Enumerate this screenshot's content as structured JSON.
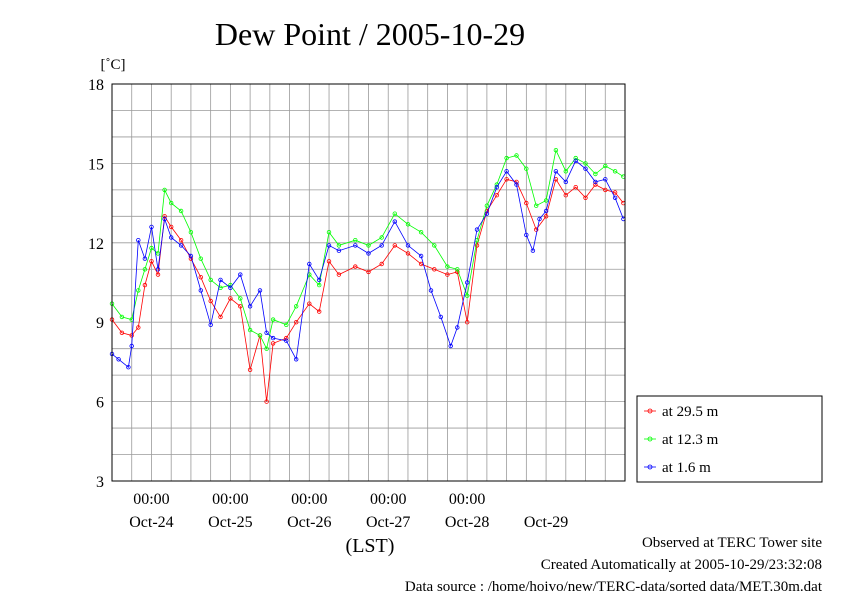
{
  "chart_data": {
    "type": "line",
    "title": "Dew Point / 2005-10-29",
    "ylabel": "[˚C]",
    "xlabel": "(LST)",
    "ylim": [
      3,
      18
    ],
    "yticks": [
      3,
      6,
      9,
      12,
      15,
      18
    ],
    "x_range_days": [
      "2005-10-23 12:00",
      "2005-10-29 24:00"
    ],
    "time_tick_labels": [
      "00:00",
      "00:00",
      "00:00",
      "00:00",
      "00:00"
    ],
    "time_tick_positions": [
      "2005-10-24 00:00",
      "2005-10-25 00:00",
      "2005-10-26 00:00",
      "2005-10-27 00:00",
      "2005-10-28 00:00"
    ],
    "date_labels": [
      "Oct-24",
      "Oct-25",
      "Oct-26",
      "Oct-27",
      "Oct-28",
      "Oct-29"
    ],
    "date_label_positions": [
      "2005-10-24 00:00",
      "2005-10-25 00:00",
      "2005-10-26 00:00",
      "2005-10-27 00:00",
      "2005-10-28 00:00",
      "2005-10-29 00:00"
    ],
    "grid": true,
    "legend_position": "right",
    "series": [
      {
        "name": "at 29.5 m",
        "color": "#ff0000",
        "points": [
          [
            "2005-10-23 12:00",
            9.1
          ],
          [
            "2005-10-23 15:00",
            8.6
          ],
          [
            "2005-10-23 18:00",
            8.5
          ],
          [
            "2005-10-23 20:00",
            8.8
          ],
          [
            "2005-10-23 22:00",
            10.4
          ],
          [
            "2005-10-24 00:00",
            11.3
          ],
          [
            "2005-10-24 02:00",
            10.8
          ],
          [
            "2005-10-24 04:00",
            13.0
          ],
          [
            "2005-10-24 06:00",
            12.6
          ],
          [
            "2005-10-24 09:00",
            12.1
          ],
          [
            "2005-10-24 12:00",
            11.4
          ],
          [
            "2005-10-24 15:00",
            10.7
          ],
          [
            "2005-10-24 18:00",
            9.8
          ],
          [
            "2005-10-24 21:00",
            9.2
          ],
          [
            "2005-10-25 00:00",
            9.9
          ],
          [
            "2005-10-25 03:00",
            9.6
          ],
          [
            "2005-10-25 06:00",
            7.2
          ],
          [
            "2005-10-25 09:00",
            8.5
          ],
          [
            "2005-10-25 11:00",
            6.0
          ],
          [
            "2005-10-25 13:00",
            8.2
          ],
          [
            "2005-10-25 17:00",
            8.4
          ],
          [
            "2005-10-25 20:00",
            9.0
          ],
          [
            "2005-10-26 00:00",
            9.7
          ],
          [
            "2005-10-26 03:00",
            9.4
          ],
          [
            "2005-10-26 06:00",
            11.3
          ],
          [
            "2005-10-26 09:00",
            10.8
          ],
          [
            "2005-10-26 14:00",
            11.1
          ],
          [
            "2005-10-26 18:00",
            10.9
          ],
          [
            "2005-10-26 22:00",
            11.2
          ],
          [
            "2005-10-27 02:00",
            11.9
          ],
          [
            "2005-10-27 06:00",
            11.6
          ],
          [
            "2005-10-27 10:00",
            11.2
          ],
          [
            "2005-10-27 14:00",
            11.0
          ],
          [
            "2005-10-27 18:00",
            10.8
          ],
          [
            "2005-10-27 21:00",
            10.9
          ],
          [
            "2005-10-28 00:00",
            9.0
          ],
          [
            "2005-10-28 03:00",
            11.9
          ],
          [
            "2005-10-28 06:00",
            13.2
          ],
          [
            "2005-10-28 09:00",
            13.8
          ],
          [
            "2005-10-28 12:00",
            14.4
          ],
          [
            "2005-10-28 15:00",
            14.3
          ],
          [
            "2005-10-28 18:00",
            13.5
          ],
          [
            "2005-10-28 21:00",
            12.5
          ],
          [
            "2005-10-29 00:00",
            13.0
          ],
          [
            "2005-10-29 03:00",
            14.4
          ],
          [
            "2005-10-29 06:00",
            13.8
          ],
          [
            "2005-10-29 09:00",
            14.1
          ],
          [
            "2005-10-29 12:00",
            13.7
          ],
          [
            "2005-10-29 15:00",
            14.2
          ],
          [
            "2005-10-29 18:00",
            14.0
          ],
          [
            "2005-10-29 21:00",
            13.9
          ],
          [
            "2005-10-29 23:30",
            13.5
          ]
        ]
      },
      {
        "name": "at 12.3 m",
        "color": "#00ff00",
        "points": [
          [
            "2005-10-23 12:00",
            9.7
          ],
          [
            "2005-10-23 15:00",
            9.2
          ],
          [
            "2005-10-23 18:00",
            9.1
          ],
          [
            "2005-10-23 20:00",
            10.2
          ],
          [
            "2005-10-23 22:00",
            11.0
          ],
          [
            "2005-10-24 00:00",
            11.8
          ],
          [
            "2005-10-24 02:00",
            11.6
          ],
          [
            "2005-10-24 04:00",
            14.0
          ],
          [
            "2005-10-24 06:00",
            13.5
          ],
          [
            "2005-10-24 09:00",
            13.2
          ],
          [
            "2005-10-24 12:00",
            12.4
          ],
          [
            "2005-10-24 15:00",
            11.4
          ],
          [
            "2005-10-24 18:00",
            10.6
          ],
          [
            "2005-10-24 21:00",
            10.3
          ],
          [
            "2005-10-25 00:00",
            10.4
          ],
          [
            "2005-10-25 03:00",
            9.9
          ],
          [
            "2005-10-25 06:00",
            8.7
          ],
          [
            "2005-10-25 09:00",
            8.5
          ],
          [
            "2005-10-25 11:00",
            8.0
          ],
          [
            "2005-10-25 13:00",
            9.1
          ],
          [
            "2005-10-25 17:00",
            8.9
          ],
          [
            "2005-10-25 20:00",
            9.6
          ],
          [
            "2005-10-26 00:00",
            10.8
          ],
          [
            "2005-10-26 03:00",
            10.4
          ],
          [
            "2005-10-26 06:00",
            12.4
          ],
          [
            "2005-10-26 09:00",
            11.9
          ],
          [
            "2005-10-26 14:00",
            12.1
          ],
          [
            "2005-10-26 18:00",
            11.9
          ],
          [
            "2005-10-26 22:00",
            12.2
          ],
          [
            "2005-10-27 02:00",
            13.1
          ],
          [
            "2005-10-27 06:00",
            12.7
          ],
          [
            "2005-10-27 10:00",
            12.4
          ],
          [
            "2005-10-27 14:00",
            11.9
          ],
          [
            "2005-10-27 18:00",
            11.1
          ],
          [
            "2005-10-27 21:00",
            11.0
          ],
          [
            "2005-10-28 00:00",
            10.0
          ],
          [
            "2005-10-28 03:00",
            12.1
          ],
          [
            "2005-10-28 06:00",
            13.4
          ],
          [
            "2005-10-28 09:00",
            14.2
          ],
          [
            "2005-10-28 12:00",
            15.2
          ],
          [
            "2005-10-28 15:00",
            15.3
          ],
          [
            "2005-10-28 18:00",
            14.8
          ],
          [
            "2005-10-28 21:00",
            13.4
          ],
          [
            "2005-10-29 00:00",
            13.6
          ],
          [
            "2005-10-29 03:00",
            15.5
          ],
          [
            "2005-10-29 06:00",
            14.7
          ],
          [
            "2005-10-29 09:00",
            15.2
          ],
          [
            "2005-10-29 12:00",
            15.0
          ],
          [
            "2005-10-29 15:00",
            14.6
          ],
          [
            "2005-10-29 18:00",
            14.9
          ],
          [
            "2005-10-29 21:00",
            14.7
          ],
          [
            "2005-10-29 23:30",
            14.5
          ]
        ]
      },
      {
        "name": "at 1.6 m",
        "color": "#0000ff",
        "points": [
          [
            "2005-10-23 12:00",
            7.8
          ],
          [
            "2005-10-23 14:00",
            7.6
          ],
          [
            "2005-10-23 17:00",
            7.3
          ],
          [
            "2005-10-23 18:00",
            8.1
          ],
          [
            "2005-10-23 20:00",
            12.1
          ],
          [
            "2005-10-23 22:00",
            11.4
          ],
          [
            "2005-10-24 00:00",
            12.6
          ],
          [
            "2005-10-24 02:00",
            11.0
          ],
          [
            "2005-10-24 04:00",
            12.9
          ],
          [
            "2005-10-24 06:00",
            12.2
          ],
          [
            "2005-10-24 09:00",
            11.9
          ],
          [
            "2005-10-24 12:00",
            11.5
          ],
          [
            "2005-10-24 15:00",
            10.2
          ],
          [
            "2005-10-24 18:00",
            8.9
          ],
          [
            "2005-10-24 21:00",
            10.6
          ],
          [
            "2005-10-25 00:00",
            10.3
          ],
          [
            "2005-10-25 03:00",
            10.8
          ],
          [
            "2005-10-25 06:00",
            9.6
          ],
          [
            "2005-10-25 09:00",
            10.2
          ],
          [
            "2005-10-25 11:00",
            8.6
          ],
          [
            "2005-10-25 13:00",
            8.4
          ],
          [
            "2005-10-25 17:00",
            8.3
          ],
          [
            "2005-10-25 20:00",
            7.6
          ],
          [
            "2005-10-26 00:00",
            11.2
          ],
          [
            "2005-10-26 03:00",
            10.6
          ],
          [
            "2005-10-26 06:00",
            11.9
          ],
          [
            "2005-10-26 09:00",
            11.7
          ],
          [
            "2005-10-26 14:00",
            11.9
          ],
          [
            "2005-10-26 18:00",
            11.6
          ],
          [
            "2005-10-26 22:00",
            11.9
          ],
          [
            "2005-10-27 02:00",
            12.8
          ],
          [
            "2005-10-27 06:00",
            11.9
          ],
          [
            "2005-10-27 10:00",
            11.5
          ],
          [
            "2005-10-27 13:00",
            10.2
          ],
          [
            "2005-10-27 16:00",
            9.2
          ],
          [
            "2005-10-27 19:00",
            8.1
          ],
          [
            "2005-10-27 21:00",
            8.8
          ],
          [
            "2005-10-28 00:00",
            10.5
          ],
          [
            "2005-10-28 03:00",
            12.5
          ],
          [
            "2005-10-28 06:00",
            13.1
          ],
          [
            "2005-10-28 09:00",
            14.1
          ],
          [
            "2005-10-28 12:00",
            14.7
          ],
          [
            "2005-10-28 15:00",
            14.2
          ],
          [
            "2005-10-28 18:00",
            12.3
          ],
          [
            "2005-10-28 20:00",
            11.7
          ],
          [
            "2005-10-28 22:00",
            12.9
          ],
          [
            "2005-10-29 00:00",
            13.2
          ],
          [
            "2005-10-29 03:00",
            14.7
          ],
          [
            "2005-10-29 06:00",
            14.3
          ],
          [
            "2005-10-29 09:00",
            15.1
          ],
          [
            "2005-10-29 12:00",
            14.8
          ],
          [
            "2005-10-29 15:00",
            14.3
          ],
          [
            "2005-10-29 18:00",
            14.4
          ],
          [
            "2005-10-29 21:00",
            13.7
          ],
          [
            "2005-10-29 23:30",
            12.9
          ]
        ]
      }
    ]
  },
  "footer": {
    "line1": "Observed at TERC Tower site",
    "line2": "Created Automatically at 2005-10-29/23:32:08",
    "line3": "Data source : /home/hoivo/new/TERC-data/sorted  data/MET.30m.dat"
  }
}
